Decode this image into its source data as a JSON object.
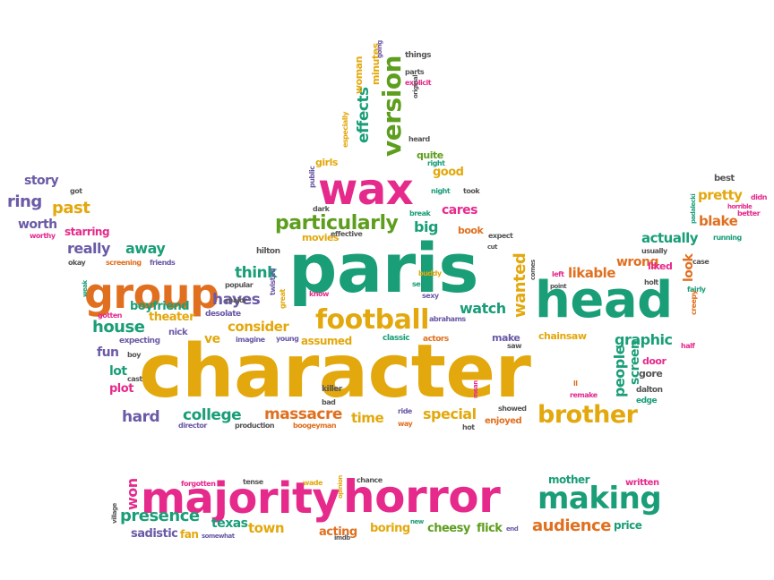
{
  "palette": {
    "teal": "#1a9e78",
    "magenta": "#e52a8c",
    "orange": "#e07020",
    "green": "#5e9e1e",
    "gold": "#e3a80d",
    "purple": "#6b5aa6",
    "gray": "#555555"
  },
  "words": [
    {
      "text": "character",
      "color": "gold"
    },
    {
      "text": "paris",
      "color": "teal"
    },
    {
      "text": "horror",
      "color": "magenta"
    },
    {
      "text": "majority",
      "color": "magenta"
    },
    {
      "text": "head",
      "color": "teal"
    },
    {
      "text": "group",
      "color": "orange"
    },
    {
      "text": "wax",
      "color": "magenta"
    },
    {
      "text": "making",
      "color": "teal"
    },
    {
      "text": "football",
      "color": "gold"
    },
    {
      "text": "version",
      "color": "green"
    },
    {
      "text": "brother",
      "color": "gold"
    },
    {
      "text": "particularly",
      "color": "green"
    },
    {
      "text": "effects",
      "color": "teal"
    },
    {
      "text": "presence",
      "color": "teal"
    },
    {
      "text": "audience",
      "color": "orange"
    },
    {
      "text": "wanted",
      "color": "gold"
    },
    {
      "text": "massacre",
      "color": "orange"
    },
    {
      "text": "house",
      "color": "teal"
    },
    {
      "text": "hayes",
      "color": "purple"
    },
    {
      "text": "college",
      "color": "teal"
    },
    {
      "text": "hard",
      "color": "purple"
    },
    {
      "text": "think",
      "color": "teal"
    },
    {
      "text": "consider",
      "color": "gold"
    },
    {
      "text": "graphic",
      "color": "teal"
    },
    {
      "text": "watch",
      "color": "teal"
    },
    {
      "text": "really",
      "color": "purple"
    },
    {
      "text": "away",
      "color": "teal"
    },
    {
      "text": "pretty",
      "color": "gold"
    },
    {
      "text": "blake",
      "color": "orange"
    },
    {
      "text": "actually",
      "color": "teal"
    },
    {
      "text": "ring",
      "color": "purple"
    },
    {
      "text": "past",
      "color": "gold"
    },
    {
      "text": "worth",
      "color": "purple"
    },
    {
      "text": "story",
      "color": "purple"
    },
    {
      "text": "special",
      "color": "gold"
    },
    {
      "text": "time",
      "color": "gold"
    },
    {
      "text": "town",
      "color": "gold"
    },
    {
      "text": "likable",
      "color": "orange"
    },
    {
      "text": "wrong",
      "color": "orange"
    },
    {
      "text": "people",
      "color": "teal"
    },
    {
      "text": "screen",
      "color": "teal"
    },
    {
      "text": "look",
      "color": "orange"
    },
    {
      "text": "cares",
      "color": "magenta"
    },
    {
      "text": "big",
      "color": "teal"
    },
    {
      "text": "won",
      "color": "magenta"
    },
    {
      "text": "fun",
      "color": "purple"
    },
    {
      "text": "texas",
      "color": "teal"
    },
    {
      "text": "acting",
      "color": "orange"
    },
    {
      "text": "cheesy",
      "color": "green"
    },
    {
      "text": "flick",
      "color": "green"
    },
    {
      "text": "boring",
      "color": "gold"
    },
    {
      "text": "sadistic",
      "color": "purple"
    },
    {
      "text": "fan",
      "color": "gold"
    },
    {
      "text": "price",
      "color": "teal"
    },
    {
      "text": "theater",
      "color": "gold"
    },
    {
      "text": "boyfriend",
      "color": "teal"
    },
    {
      "text": "lot",
      "color": "teal"
    },
    {
      "text": "plot",
      "color": "magenta"
    },
    {
      "text": "ve",
      "color": "gold"
    },
    {
      "text": "good",
      "color": "gold"
    },
    {
      "text": "book",
      "color": "orange"
    },
    {
      "text": "assumed",
      "color": "gold"
    },
    {
      "text": "chainsaw",
      "color": "gold"
    },
    {
      "text": "make",
      "color": "purple"
    },
    {
      "text": "gore",
      "color": "gray"
    },
    {
      "text": "door",
      "color": "magenta"
    },
    {
      "text": "mother",
      "color": "teal"
    },
    {
      "text": "written",
      "color": "magenta"
    },
    {
      "text": "quite",
      "color": "green"
    },
    {
      "text": "liked",
      "color": "magenta"
    },
    {
      "text": "starring",
      "color": "magenta"
    },
    {
      "text": "movies",
      "color": "gold"
    },
    {
      "text": "girls",
      "color": "gold"
    },
    {
      "text": "woman",
      "color": "gold"
    },
    {
      "text": "minutes",
      "color": "gold"
    },
    {
      "text": "things",
      "color": "gray"
    },
    {
      "text": "best",
      "color": "gray"
    },
    {
      "text": "hilton",
      "color": "gray"
    },
    {
      "text": "nick",
      "color": "purple"
    },
    {
      "text": "enjoyed",
      "color": "orange"
    },
    {
      "text": "killer",
      "color": "gray"
    },
    {
      "text": "dalton",
      "color": "gray"
    },
    {
      "text": "edge",
      "color": "teal"
    },
    {
      "text": "classic",
      "color": "teal"
    },
    {
      "text": "actors",
      "color": "orange"
    },
    {
      "text": "boogeyman",
      "color": "orange"
    },
    {
      "text": "production",
      "color": "gray"
    },
    {
      "text": "director",
      "color": "purple"
    },
    {
      "text": "ride",
      "color": "purple"
    },
    {
      "text": "way",
      "color": "orange"
    },
    {
      "text": "hot",
      "color": "gray"
    },
    {
      "text": "showed",
      "color": "gray"
    },
    {
      "text": "imagine",
      "color": "purple"
    },
    {
      "text": "young",
      "color": "purple"
    },
    {
      "text": "desolate",
      "color": "purple"
    },
    {
      "text": "popular",
      "color": "gray"
    },
    {
      "text": "major",
      "color": "gray"
    },
    {
      "text": "expecting",
      "color": "purple"
    },
    {
      "text": "screening",
      "color": "orange"
    },
    {
      "text": "friends",
      "color": "purple"
    },
    {
      "text": "okay",
      "color": "gray"
    },
    {
      "text": "gotten",
      "color": "magenta"
    },
    {
      "text": "cast",
      "color": "gray"
    },
    {
      "text": "boy",
      "color": "gray"
    },
    {
      "text": "worthy",
      "color": "magenta"
    },
    {
      "text": "got",
      "color": "gray"
    },
    {
      "text": "dark",
      "color": "gray"
    },
    {
      "text": "effective",
      "color": "gray"
    },
    {
      "text": "expect",
      "color": "gray"
    },
    {
      "text": "break",
      "color": "teal"
    },
    {
      "text": "night",
      "color": "teal"
    },
    {
      "text": "took",
      "color": "gray"
    },
    {
      "text": "heard",
      "color": "gray"
    },
    {
      "text": "right",
      "color": "teal"
    },
    {
      "text": "parts",
      "color": "gray"
    },
    {
      "text": "explicit",
      "color": "magenta"
    },
    {
      "text": "original",
      "color": "gray"
    },
    {
      "text": "going",
      "color": "purple"
    },
    {
      "text": "especially",
      "color": "gold"
    },
    {
      "text": "public",
      "color": "purple"
    },
    {
      "text": "sexy",
      "color": "purple"
    },
    {
      "text": "serra",
      "color": "teal"
    },
    {
      "text": "buddy",
      "color": "gold"
    },
    {
      "text": "know",
      "color": "magenta"
    },
    {
      "text": "abrahams",
      "color": "purple"
    },
    {
      "text": "saw",
      "color": "gray"
    },
    {
      "text": "left",
      "color": "magenta"
    },
    {
      "text": "point",
      "color": "gray"
    },
    {
      "text": "holt",
      "color": "gray"
    },
    {
      "text": "fairly",
      "color": "teal"
    },
    {
      "text": "case",
      "color": "gray"
    },
    {
      "text": "half",
      "color": "magenta"
    },
    {
      "text": "usually",
      "color": "gray"
    },
    {
      "text": "running",
      "color": "teal"
    },
    {
      "text": "better",
      "color": "magenta"
    },
    {
      "text": "horrible",
      "color": "magenta"
    },
    {
      "text": "didn",
      "color": "magenta"
    },
    {
      "text": "padalecki",
      "color": "teal"
    },
    {
      "text": "creepy",
      "color": "orange"
    },
    {
      "text": "remake",
      "color": "magenta"
    },
    {
      "text": "ll",
      "color": "orange"
    },
    {
      "text": "mean",
      "color": "magenta"
    },
    {
      "text": "bad",
      "color": "gray"
    },
    {
      "text": "twisted",
      "color": "purple"
    },
    {
      "text": "great",
      "color": "gold"
    },
    {
      "text": "forgotten",
      "color": "magenta"
    },
    {
      "text": "tense",
      "color": "gray"
    },
    {
      "text": "wade",
      "color": "gold"
    },
    {
      "text": "opinion",
      "color": "gold"
    },
    {
      "text": "chance",
      "color": "gray"
    },
    {
      "text": "somewhat",
      "color": "purple"
    },
    {
      "text": "imdb",
      "color": "gray"
    },
    {
      "text": "new",
      "color": "teal"
    },
    {
      "text": "end",
      "color": "purple"
    },
    {
      "text": "village",
      "color": "gray"
    },
    {
      "text": "weak",
      "color": "teal"
    },
    {
      "text": "cut",
      "color": "gray"
    },
    {
      "text": "comes",
      "color": "gray"
    }
  ]
}
